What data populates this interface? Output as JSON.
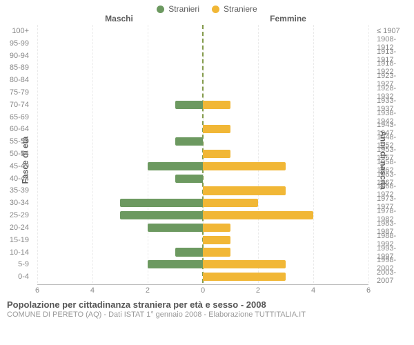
{
  "legend": {
    "male": {
      "label": "Stranieri",
      "color": "#6c9960"
    },
    "female": {
      "label": "Straniere",
      "color": "#f1b736"
    }
  },
  "headers": {
    "male": "Maschi",
    "female": "Femmine"
  },
  "axis_labels": {
    "left": "Fasce di età",
    "right": "Anni di nascita"
  },
  "chart": {
    "type": "pyramid-bar",
    "x_max": 6,
    "x_ticks": [
      6,
      4,
      2,
      0,
      2,
      4,
      6
    ],
    "grid_color": "#d7d7d7",
    "male_color": "#6c9960",
    "female_color": "#f1b736",
    "background_color": "#ffffff",
    "bar_height_ratio": 0.68,
    "label_fontsize": 11,
    "rows": [
      {
        "age": "100+",
        "birth": "≤ 1907",
        "m": 0,
        "f": 0
      },
      {
        "age": "95-99",
        "birth": "1908-1912",
        "m": 0,
        "f": 0
      },
      {
        "age": "90-94",
        "birth": "1913-1917",
        "m": 0,
        "f": 0
      },
      {
        "age": "85-89",
        "birth": "1918-1922",
        "m": 0,
        "f": 0
      },
      {
        "age": "80-84",
        "birth": "1923-1927",
        "m": 0,
        "f": 0
      },
      {
        "age": "75-79",
        "birth": "1928-1932",
        "m": 0,
        "f": 0
      },
      {
        "age": "70-74",
        "birth": "1933-1937",
        "m": 1,
        "f": 1
      },
      {
        "age": "65-69",
        "birth": "1938-1942",
        "m": 0,
        "f": 0
      },
      {
        "age": "60-64",
        "birth": "1943-1947",
        "m": 0,
        "f": 1
      },
      {
        "age": "55-59",
        "birth": "1948-1952",
        "m": 1,
        "f": 0
      },
      {
        "age": "50-54",
        "birth": "1953-1957",
        "m": 0,
        "f": 1
      },
      {
        "age": "45-49",
        "birth": "1958-1962",
        "m": 2,
        "f": 3
      },
      {
        "age": "40-44",
        "birth": "1963-1967",
        "m": 1,
        "f": 0
      },
      {
        "age": "35-39",
        "birth": "1968-1972",
        "m": 0,
        "f": 3
      },
      {
        "age": "30-34",
        "birth": "1973-1977",
        "m": 3,
        "f": 2
      },
      {
        "age": "25-29",
        "birth": "1978-1982",
        "m": 3,
        "f": 4
      },
      {
        "age": "20-24",
        "birth": "1983-1987",
        "m": 2,
        "f": 1
      },
      {
        "age": "15-19",
        "birth": "1988-1992",
        "m": 0,
        "f": 1
      },
      {
        "age": "10-14",
        "birth": "1993-1997",
        "m": 1,
        "f": 1
      },
      {
        "age": "5-9",
        "birth": "1998-2002",
        "m": 2,
        "f": 3
      },
      {
        "age": "0-4",
        "birth": "2003-2007",
        "m": 0,
        "f": 3
      }
    ]
  },
  "footer": {
    "title": "Popolazione per cittadinanza straniera per età e sesso - 2008",
    "subtitle": "COMUNE DI PERETO (AQ) - Dati ISTAT 1° gennaio 2008 - Elaborazione TUTTITALIA.IT"
  }
}
